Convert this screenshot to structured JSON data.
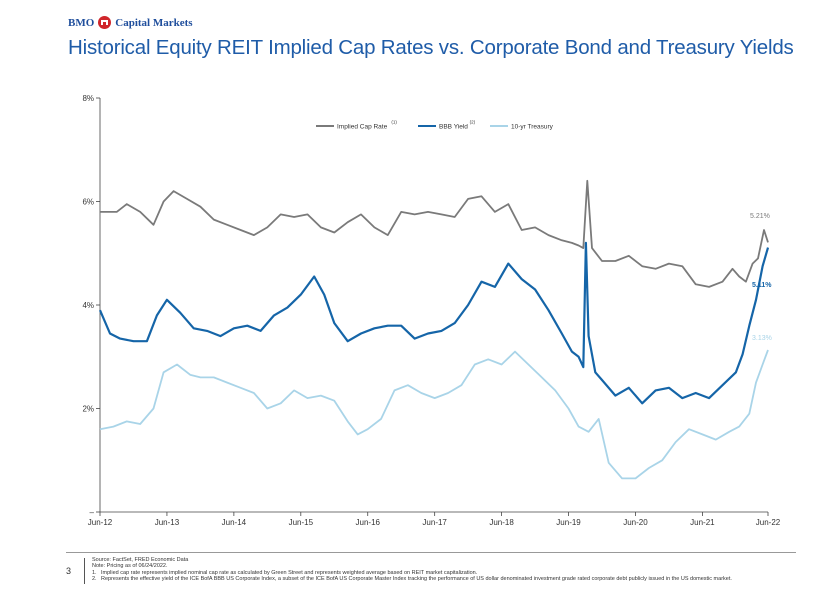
{
  "brand": {
    "text": "Capital Markets",
    "prefix": "BMO"
  },
  "title": "Historical Equity REIT Implied Cap Rates vs. Corporate Bond and Treasury Yields",
  "chart_data": {
    "type": "line",
    "title": "Historical Equity REIT Implied Cap Rates vs. Corporate Bond and Treasury Yields",
    "xlabel": "",
    "ylabel": "",
    "x_ticks": [
      "Jun-12",
      "Jun-13",
      "Jun-14",
      "Jun-15",
      "Jun-16",
      "Jun-17",
      "Jun-18",
      "Jun-19",
      "Jun-20",
      "Jun-21",
      "Jun-22"
    ],
    "y_ticks": [
      "–",
      "2%",
      "4%",
      "6%",
      "8%"
    ],
    "ylim": [
      0,
      8
    ],
    "grid": false,
    "legend_position": "top-center",
    "series": [
      {
        "name": "Implied Cap Rate",
        "superscript": "(1)",
        "color": "#7a7a7a",
        "end_label": "5.21%",
        "x": [
          2012.5,
          2012.75,
          2012.9,
          2013.1,
          2013.3,
          2013.45,
          2013.6,
          2013.8,
          2014.0,
          2014.2,
          2014.4,
          2014.6,
          2014.8,
          2015.0,
          2015.2,
          2015.4,
          2015.6,
          2015.8,
          2016.0,
          2016.2,
          2016.4,
          2016.6,
          2016.8,
          2017.0,
          2017.2,
          2017.4,
          2017.6,
          2017.8,
          2018.0,
          2018.2,
          2018.4,
          2018.6,
          2018.8,
          2019.0,
          2019.2,
          2019.4,
          2019.55,
          2019.65,
          2019.72,
          2019.78,
          2019.85,
          2020.0,
          2020.2,
          2020.4,
          2020.6,
          2020.8,
          2021.0,
          2021.2,
          2021.4,
          2021.6,
          2021.8,
          2021.95,
          2022.05,
          2022.15,
          2022.25,
          2022.33,
          2022.42,
          2022.48
        ],
        "y": [
          5.8,
          5.8,
          5.95,
          5.8,
          5.55,
          6.0,
          6.2,
          6.05,
          5.9,
          5.65,
          5.55,
          5.45,
          5.35,
          5.5,
          5.75,
          5.7,
          5.75,
          5.5,
          5.4,
          5.6,
          5.75,
          5.5,
          5.35,
          5.8,
          5.75,
          5.8,
          5.75,
          5.7,
          6.05,
          6.1,
          5.8,
          5.95,
          5.45,
          5.5,
          5.35,
          5.25,
          5.2,
          5.15,
          5.1,
          6.4,
          5.1,
          4.85,
          4.85,
          4.95,
          4.75,
          4.7,
          4.8,
          4.75,
          4.4,
          4.35,
          4.45,
          4.7,
          4.55,
          4.45,
          4.8,
          4.9,
          5.45,
          5.21
        ]
      },
      {
        "name": "BBB Yield",
        "superscript": "(2)",
        "color": "#1565a8",
        "end_label": "5.11%",
        "x": [
          2012.5,
          2012.65,
          2012.8,
          2013.0,
          2013.2,
          2013.35,
          2013.5,
          2013.7,
          2013.9,
          2014.1,
          2014.3,
          2014.5,
          2014.7,
          2014.9,
          2015.1,
          2015.3,
          2015.5,
          2015.7,
          2015.85,
          2016.0,
          2016.2,
          2016.4,
          2016.6,
          2016.8,
          2017.0,
          2017.2,
          2017.4,
          2017.6,
          2017.8,
          2018.0,
          2018.2,
          2018.4,
          2018.6,
          2018.8,
          2019.0,
          2019.2,
          2019.4,
          2019.55,
          2019.65,
          2019.72,
          2019.76,
          2019.8,
          2019.9,
          2020.0,
          2020.2,
          2020.4,
          2020.6,
          2020.8,
          2021.0,
          2021.2,
          2021.4,
          2021.6,
          2021.8,
          2022.0,
          2022.1,
          2022.2,
          2022.3,
          2022.4,
          2022.48
        ],
        "y": [
          3.9,
          3.45,
          3.35,
          3.3,
          3.3,
          3.8,
          4.1,
          3.85,
          3.55,
          3.5,
          3.4,
          3.55,
          3.6,
          3.5,
          3.8,
          3.95,
          4.2,
          4.55,
          4.2,
          3.65,
          3.3,
          3.45,
          3.55,
          3.6,
          3.6,
          3.35,
          3.45,
          3.5,
          3.65,
          4.0,
          4.45,
          4.35,
          4.8,
          4.5,
          4.3,
          3.9,
          3.45,
          3.1,
          3.0,
          2.8,
          5.2,
          3.4,
          2.7,
          2.55,
          2.25,
          2.4,
          2.1,
          2.35,
          2.4,
          2.2,
          2.3,
          2.2,
          2.45,
          2.7,
          3.05,
          3.6,
          4.1,
          4.75,
          5.11
        ]
      },
      {
        "name": "10-yr Treasury",
        "superscript": "",
        "color": "#a9d4e8",
        "end_label": "3.13%",
        "x": [
          2012.5,
          2012.7,
          2012.9,
          2013.1,
          2013.3,
          2013.45,
          2013.65,
          2013.85,
          2014.0,
          2014.2,
          2014.4,
          2014.6,
          2014.8,
          2015.0,
          2015.2,
          2015.4,
          2015.6,
          2015.8,
          2016.0,
          2016.2,
          2016.35,
          2016.5,
          2016.7,
          2016.9,
          2017.1,
          2017.3,
          2017.5,
          2017.7,
          2017.9,
          2018.1,
          2018.3,
          2018.5,
          2018.7,
          2018.9,
          2019.1,
          2019.3,
          2019.5,
          2019.65,
          2019.8,
          2019.95,
          2020.1,
          2020.3,
          2020.5,
          2020.7,
          2020.9,
          2021.1,
          2021.3,
          2021.5,
          2021.7,
          2021.9,
          2022.05,
          2022.2,
          2022.3,
          2022.4,
          2022.48
        ],
        "y": [
          1.6,
          1.65,
          1.75,
          1.7,
          2.0,
          2.7,
          2.85,
          2.65,
          2.6,
          2.6,
          2.5,
          2.4,
          2.3,
          2.0,
          2.1,
          2.35,
          2.2,
          2.25,
          2.15,
          1.75,
          1.5,
          1.6,
          1.8,
          2.35,
          2.45,
          2.3,
          2.2,
          2.3,
          2.45,
          2.85,
          2.95,
          2.85,
          3.1,
          2.85,
          2.6,
          2.35,
          2.0,
          1.65,
          1.55,
          1.8,
          0.95,
          0.65,
          0.65,
          0.85,
          1.0,
          1.35,
          1.6,
          1.5,
          1.4,
          1.55,
          1.65,
          1.9,
          2.5,
          2.85,
          3.13
        ]
      }
    ]
  },
  "footer": {
    "page_number": "3",
    "source": "Source: FactSet, FRED Economic Data",
    "note": "Note: Pricing as of 06/24/2022.",
    "footnotes": [
      {
        "num": "1.",
        "text": "Implied cap rate represents implied nominal cap rate as calculated by Green Street and represents weighted average based on REIT market capitalization."
      },
      {
        "num": "2.",
        "text": "Represents the effective yield of the ICE BofA BBB US Corporate Index, a subset of the ICE BofA US Corporate Master Index tracking the performance of US dollar denominated investment grade rated corporate debt publicly issued in the US domestic market."
      }
    ]
  }
}
